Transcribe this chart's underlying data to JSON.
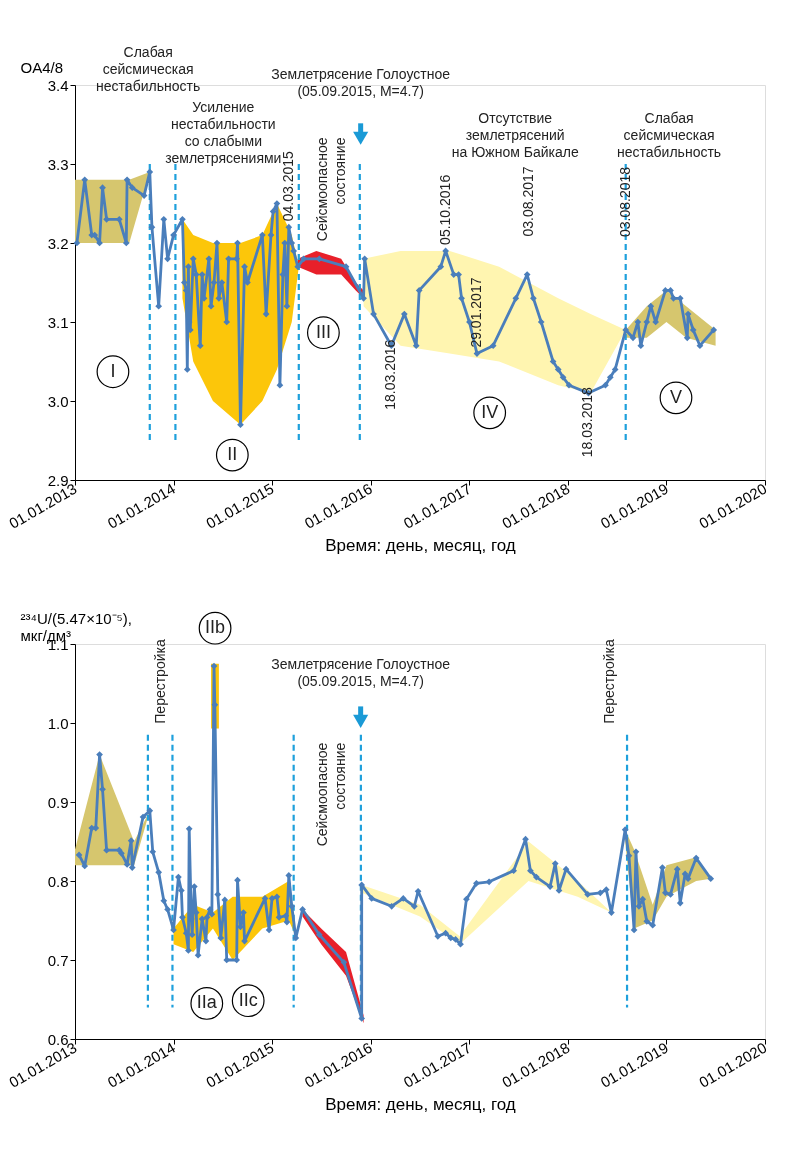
{
  "chart_data": [
    {
      "type": "line",
      "xlabel": "Время: день, месяц, год",
      "ylabel": "OA4/8",
      "xlim": [
        "2013-01-01",
        "2020-01-01"
      ],
      "xticks": [
        {
          "value": "2013-01-01",
          "label": "01.01.2013"
        },
        {
          "value": "2014-01-01",
          "label": "01.01.2014"
        },
        {
          "value": "2015-01-01",
          "label": "01.01.2015"
        },
        {
          "value": "2016-01-01",
          "label": "01.01.2016"
        },
        {
          "value": "2017-01-01",
          "label": "01.01.2017"
        },
        {
          "value": "2018-01-01",
          "label": "01.01.2018"
        },
        {
          "value": "2019-01-01",
          "label": "01.01.2019"
        },
        {
          "value": "2020-01-01",
          "label": "01.01.2020"
        }
      ],
      "ylim": [
        2.9,
        3.4
      ],
      "yticks": [
        2.9,
        {
          "value": 3.0,
          "label": "3.0"
        },
        3.1,
        3.2,
        3.3,
        3.4
      ],
      "series": [
        {
          "color": "#d6c66e",
          "x": [
            "2013-01-01",
            "2013-07-21",
            "2013-10-05"
          ],
          "values": [
            null,
            null,
            null
          ],
          "lower": [
            3.2,
            3.2,
            3.29
          ],
          "upper": [
            3.28,
            3.28,
            3.29
          ]
        },
        {
          "color": "#fcc60a",
          "x": [
            "2014-02-03",
            "2014-03-15",
            "2014-05-27",
            "2014-09-06",
            "2014-11-26",
            "2015-01-19",
            "2015-03-15",
            "2015-04-10"
          ],
          "values": [
            null,
            null,
            null,
            null,
            null,
            null,
            null,
            null
          ],
          "lower": [
            3.13,
            3.05,
            3.0,
            2.97,
            3.0,
            3.04,
            3.1,
            3.17
          ],
          "upper": [
            3.23,
            3.21,
            3.2,
            3.2,
            3.21,
            3.25,
            3.21,
            3.17
          ]
        },
        {
          "color": "#e8202a",
          "x": [
            "2015-04-06",
            "2015-06-14",
            "2015-09-14",
            "2015-11-07",
            "2015-12-06"
          ],
          "values": [
            null,
            null,
            null,
            null,
            null
          ],
          "lower": [
            3.17,
            3.16,
            3.16,
            3.14,
            3.13
          ],
          "upper": [
            3.18,
            3.19,
            3.18,
            3.15,
            3.14
          ]
        },
        {
          "color": "#fff5b0",
          "x": [
            "2015-12-06",
            "2016-04-21",
            "2016-10-20",
            "2017-04-21",
            "2017-11-26",
            "2018-03-26",
            "2018-08-03"
          ],
          "values": [
            null,
            null,
            null,
            null,
            null,
            null,
            null
          ],
          "lower": [
            3.12,
            3.07,
            3.06,
            3.05,
            3.02,
            3.01,
            3.09
          ],
          "upper": [
            3.18,
            3.19,
            3.19,
            3.17,
            3.13,
            3.11,
            3.09
          ]
        },
        {
          "color": "#d6c66e",
          "x": [
            "2018-08-03",
            "2018-10-20",
            "2019-01-01",
            "2019-03-15",
            "2019-07-02"
          ],
          "values": [
            null,
            null,
            null,
            null,
            null
          ],
          "lower": [
            3.08,
            3.08,
            3.1,
            3.08,
            3.07
          ],
          "upper": [
            3.09,
            3.12,
            3.14,
            3.12,
            3.09
          ]
        },
        {
          "color": "#4a7ebb",
          "marker": "diamond",
          "x": [
            "2013-01-08",
            "2013-02-06",
            "2013-03-04",
            "2013-03-15",
            "2013-04-02",
            "2013-04-13",
            "2013-04-28",
            "2013-06-14",
            "2013-07-10",
            "2013-07-13",
            "2013-08-01",
            "2013-09-14",
            "2013-10-05",
            "2013-10-13",
            "2013-11-07",
            "2013-11-26",
            "2013-12-10",
            "2014-01-01",
            "2014-02-03",
            "2014-02-10",
            "2014-02-17",
            "2014-02-21",
            "2014-02-25",
            "2014-02-28",
            "2014-03-04",
            "2014-03-15",
            "2014-03-26",
            "2014-04-10",
            "2014-04-17",
            "2014-04-24",
            "2014-05-12",
            "2014-05-20",
            "2014-05-31",
            "2014-06-11",
            "2014-06-18",
            "2014-06-29",
            "2014-07-17",
            "2014-07-24",
            "2014-08-23",
            "2014-08-26",
            "2014-09-06",
            "2014-09-21",
            "2014-10-02",
            "2014-11-26",
            "2014-12-10",
            "2014-12-28",
            "2015-01-05",
            "2015-01-19",
            "2015-01-30",
            "2015-02-10",
            "2015-02-17",
            "2015-02-25",
            "2015-03-04",
            "2015-03-15",
            "2015-03-22",
            "2015-04-06",
            "2015-04-28",
            "2015-06-25",
            "2015-10-02",
            "2015-12-06",
            "2015-12-10",
            "2016-01-12",
            "2016-03-18",
            "2016-05-05",
            "2016-06-18",
            "2016-06-29",
            "2016-09-17",
            "2016-10-05",
            "2016-11-04",
            "2016-11-22",
            "2016-12-03",
            "2017-01-01",
            "2017-01-29",
            "2017-03-30",
            "2017-06-22",
            "2017-08-03",
            "2017-08-26",
            "2017-09-24",
            "2017-11-07",
            "2017-11-26",
            "2017-12-14",
            "2018-01-05",
            "2018-03-18",
            "2018-05-20",
            "2018-06-07",
            "2018-06-25",
            "2018-08-03",
            "2018-08-30",
            "2018-09-17",
            "2018-09-28",
            "2018-10-20",
            "2018-11-04",
            "2018-11-22",
            "2018-12-28",
            "2019-01-16",
            "2019-01-27",
            "2019-02-21",
            "2019-03-19",
            "2019-03-22",
            "2019-04-10",
            "2019-05-05",
            "2019-06-25"
          ],
          "values": [
            3.2,
            3.28,
            3.21,
            3.21,
            3.2,
            3.27,
            3.23,
            3.23,
            3.2,
            3.28,
            3.27,
            3.26,
            3.29,
            3.22,
            3.12,
            3.23,
            3.18,
            3.21,
            3.23,
            3.15,
            3.14,
            3.04,
            3.17,
            3.1,
            3.09,
            3.18,
            3.16,
            3.07,
            3.16,
            3.13,
            3.18,
            3.12,
            3.15,
            3.2,
            3.13,
            3.15,
            3.1,
            3.18,
            3.18,
            3.2,
            2.97,
            3.17,
            3.15,
            3.21,
            3.11,
            3.21,
            3.24,
            3.25,
            3.02,
            3.16,
            3.2,
            3.12,
            3.22,
            3.2,
            3.19,
            3.17,
            3.18,
            3.18,
            3.17,
            3.13,
            3.18,
            3.11,
            3.07,
            3.11,
            3.07,
            3.14,
            3.17,
            3.19,
            3.16,
            3.16,
            3.13,
            3.1,
            3.06,
            3.07,
            3.13,
            3.16,
            3.13,
            3.1,
            3.05,
            3.04,
            3.03,
            3.02,
            3.01,
            3.02,
            3.03,
            3.04,
            3.09,
            3.08,
            3.1,
            3.07,
            3.1,
            3.12,
            3.1,
            3.14,
            3.14,
            3.13,
            3.13,
            3.08,
            3.11,
            3.09,
            3.07,
            3.09
          ]
        }
      ],
      "ref_lines": [
        {
          "axis": "x",
          "value": "2013-10-05",
          "color": "#1ea0dc",
          "line_style": "dashed"
        },
        {
          "axis": "x",
          "value": "2014-01-08",
          "color": "#1ea0dc",
          "line_style": "dashed"
        },
        {
          "axis": "x",
          "value": "2015-04-10",
          "color": "#1ea0dc",
          "line_style": "dashed"
        },
        {
          "axis": "x",
          "value": "2015-11-22",
          "color": "#1ea0dc",
          "line_style": "dashed"
        },
        {
          "axis": "x",
          "value": "2018-08-03",
          "color": "#1ea0dc",
          "line_style": "dashed"
        }
      ],
      "annotations": [
        "Слабая\nсейсмическая\nнестабильность",
        "Усиление\nнестабильности\nсо слабыми\nземлетрясениями",
        "Землетрясение Голоустное\n(05.09.2015, M=4.7)",
        {
          "text": "04.03.2015",
          "x": "2015-03-04",
          "y": 3.22
        },
        "Сейсмоопасное\nсостояние",
        {
          "text": "18.03.2016",
          "x": "2016-03-18",
          "y": 3.07
        },
        {
          "text": "05.10.2016",
          "x": "2016-10-05",
          "y": 3.19
        },
        {
          "text": "29.01.2017",
          "x": "2017-01-29",
          "y": 3.06
        },
        "03.08.2017",
        {
          "text": "18.03.2018",
          "x": "2018-03-18",
          "y": 3.01
        },
        {
          "text": "03.08.2018",
          "x": "2018-08-03",
          "y": 3.2
        },
        "Отсутствие\nземлетрясений\nна Южном Байкале",
        "Слабая\nсейсмическая\nнестабильность",
        "I",
        "II",
        "III",
        "IV",
        "V"
      ]
    },
    {
      "type": "line",
      "xlabel": "Время: день, месяц, год",
      "ylabel": "²³⁴U/(5.47×10⁻⁵),\nмкг/дм³",
      "xlim": [
        "2013-01-01",
        "2020-01-01"
      ],
      "xticks": [
        {
          "value": "2013-01-01",
          "label": "01.01.2013"
        },
        {
          "value": "2014-01-01",
          "label": "01.01.2014"
        },
        {
          "value": "2015-01-01",
          "label": "01.01.2015"
        },
        {
          "value": "2016-01-01",
          "label": "01.01.2016"
        },
        {
          "value": "2017-01-01",
          "label": "01.01.2017"
        },
        {
          "value": "2018-01-01",
          "label": "01.01.2018"
        },
        {
          "value": "2019-01-01",
          "label": "01.01.2019"
        },
        {
          "value": "2020-01-01",
          "label": "01.01.2020"
        }
      ],
      "ylim": [
        0.6,
        1.1
      ],
      "yticks": [
        0.6,
        0.7,
        0.8,
        0.9,
        {
          "value": 1.0,
          "label": "1.0"
        },
        1.1
      ],
      "series": [
        {
          "color": "#d6c66e",
          "x": [
            "2013-01-01",
            "2013-04-02",
            "2013-08-08",
            "2013-10-05"
          ],
          "values": [
            null,
            null,
            null,
            null
          ],
          "lower": [
            0.82,
            0.82,
            0.82,
            0.889
          ],
          "upper": [
            0.84,
            0.96,
            0.85,
            0.889
          ]
        },
        {
          "color": "#fcc60a",
          "x": [
            "2014-01-01",
            "2014-03-15",
            "2014-05-27",
            "2014-08-08",
            "2014-11-26",
            "2015-03-04",
            "2015-03-30"
          ],
          "values": [
            null,
            null,
            null,
            null,
            null,
            null,
            null
          ],
          "lower": [
            0.72,
            0.71,
            0.74,
            0.7,
            0.74,
            0.75,
            0.73
          ],
          "upper": [
            0.74,
            0.77,
            0.76,
            0.78,
            0.78,
            0.8,
            0.73
          ]
        },
        {
          "color": "#fcc60a",
          "x": [
            "2014-05-20",
            "2014-06-18"
          ],
          "values": [
            null,
            null
          ],
          "lower": [
            0.993,
            0.993
          ],
          "upper": [
            1.075,
            1.075
          ]
        },
        {
          "color": "#e8202a",
          "x": [
            "2015-04-24",
            "2015-07-02",
            "2015-10-02",
            "2015-12-06"
          ],
          "values": [
            null,
            null,
            null,
            null
          ],
          "lower": [
            0.755,
            0.72,
            0.68,
            0.62
          ],
          "upper": [
            0.764,
            0.74,
            0.71,
            0.63
          ]
        },
        {
          "color": "#fff5b0",
          "x": [
            "2015-11-29",
            "2016-07-02",
            "2016-11-26",
            "2017-08-08",
            "2018-02-06",
            "2018-06-11",
            "2018-08-01"
          ],
          "values": [
            null,
            null,
            null,
            null,
            null,
            null,
            null
          ],
          "lower": [
            0.785,
            0.755,
            0.72,
            0.8,
            0.78,
            0.76,
            0.865
          ],
          "upper": [
            0.795,
            0.77,
            0.73,
            0.85,
            0.8,
            0.76,
            0.865
          ]
        },
        {
          "color": "#d6c66e",
          "x": [
            "2018-08-01",
            "2018-09-03",
            "2018-11-11",
            "2019-01-01",
            "2019-04-21",
            "2019-06-14"
          ],
          "values": [
            null,
            null,
            null,
            null,
            null,
            null
          ],
          "lower": [
            0.85,
            0.74,
            0.75,
            0.78,
            0.8,
            0.803
          ],
          "upper": [
            0.865,
            0.84,
            0.77,
            0.82,
            0.83,
            0.803
          ]
        },
        {
          "color": "#4a7ebb",
          "marker": "diamond",
          "x": [
            "2013-01-16",
            "2013-02-06",
            "2013-03-04",
            "2013-03-19",
            "2013-04-02",
            "2013-04-13",
            "2013-04-28",
            "2013-06-14",
            "2013-06-22",
            "2013-07-13",
            "2013-07-28",
            "2013-08-01",
            "2013-09-10",
            "2013-10-05",
            "2013-10-16",
            "2013-11-07",
            "2013-11-26",
            "2013-12-10",
            "2014-01-01",
            "2014-01-19",
            "2014-01-30",
            "2014-02-03",
            "2014-02-17",
            "2014-02-25",
            "2014-02-28",
            "2014-03-08",
            "2014-03-11",
            "2014-03-19",
            "2014-03-26",
            "2014-04-02",
            "2014-04-17",
            "2014-05-01",
            "2014-05-05",
            "2014-05-16",
            "2014-05-23",
            "2014-05-31",
            "2014-06-03",
            "2014-06-14",
            "2014-06-25",
            "2014-07-10",
            "2014-07-17",
            "2014-08-23",
            "2014-08-26",
            "2014-09-06",
            "2014-09-17",
            "2014-09-21",
            "2014-12-06",
            "2014-12-21",
            "2015-01-01",
            "2015-01-19",
            "2015-01-27",
            "2015-02-21",
            "2015-02-25",
            "2015-03-04",
            "2015-03-15",
            "2015-03-30",
            "2015-04-24",
            "2015-06-25",
            "2015-09-24",
            "2015-11-29",
            "2015-11-29",
            "2016-01-05",
            "2016-03-19",
            "2016-05-01",
            "2016-06-11",
            "2016-06-25",
            "2016-09-06",
            "2016-10-05",
            "2016-10-24",
            "2016-11-11",
            "2016-11-29",
            "2016-12-21",
            "2017-01-27",
            "2017-03-15",
            "2017-06-14",
            "2017-07-28",
            "2017-08-15",
            "2017-09-06",
            "2017-10-27",
            "2017-11-15",
            "2017-11-29",
            "2017-12-25",
            "2018-03-15",
            "2018-05-01",
            "2018-05-23",
            "2018-06-11",
            "2018-08-01",
            "2018-08-15",
            "2018-09-03",
            "2018-09-10",
            "2018-09-21",
            "2018-10-05",
            "2018-10-20",
            "2018-11-11",
            "2018-12-17",
            "2018-12-28",
            "2019-01-16",
            "2019-02-10",
            "2019-02-21",
            "2019-03-11",
            "2019-03-22",
            "2019-04-21",
            "2019-06-14"
          ],
          "values": [
            0.833,
            0.819,
            0.867,
            0.867,
            0.96,
            0.916,
            0.839,
            0.839,
            0.835,
            0.821,
            0.851,
            0.817,
            0.881,
            0.889,
            0.837,
            0.811,
            0.775,
            0.764,
            0.738,
            0.805,
            0.788,
            0.754,
            0.734,
            0.712,
            0.866,
            0.752,
            0.732,
            0.793,
            0.76,
            0.706,
            0.752,
            0.724,
            0.754,
            0.764,
            0.758,
            1.072,
            1.023,
            0.783,
            0.728,
            0.776,
            0.7,
            0.7,
            0.801,
            0.742,
            0.76,
            0.724,
            0.778,
            0.738,
            0.778,
            0.78,
            0.754,
            0.756,
            0.748,
            0.807,
            0.768,
            0.728,
            0.764,
            0.732,
            0.697,
            0.626,
            0.795,
            0.778,
            0.768,
            0.778,
            0.768,
            0.787,
            0.73,
            0.734,
            0.728,
            0.726,
            0.72,
            0.777,
            0.797,
            0.799,
            0.813,
            0.853,
            0.813,
            0.805,
            0.793,
            0.822,
            0.788,
            0.815,
            0.783,
            0.785,
            0.789,
            0.76,
            0.865,
            0.832,
            0.738,
            0.837,
            0.768,
            0.777,
            0.749,
            0.744,
            0.817,
            0.785,
            0.783,
            0.815,
            0.772,
            0.809,
            0.803,
            0.829,
            0.803
          ]
        }
      ],
      "ref_lines": [
        {
          "axis": "x",
          "value": "2013-09-28",
          "color": "#1ea0dc",
          "line_style": "dashed"
        },
        {
          "axis": "x",
          "value": "2013-12-28",
          "color": "#1ea0dc",
          "line_style": "dashed"
        },
        {
          "axis": "x",
          "value": "2015-03-22",
          "color": "#1ea0dc",
          "line_style": "dashed"
        },
        {
          "axis": "x",
          "value": "2015-11-26",
          "color": "#1ea0dc",
          "line_style": "dashed"
        },
        {
          "axis": "x",
          "value": "2018-08-08",
          "color": "#1ea0dc",
          "line_style": "dashed"
        }
      ],
      "annotations": [
        "Перестройка",
        "IIb",
        "Землетрясение Голоустное\n(05.09.2015, M=4.7)",
        "Сейсмоопасное\nсостояние",
        "IIa",
        "IIc",
        "Перестройка"
      ]
    }
  ]
}
